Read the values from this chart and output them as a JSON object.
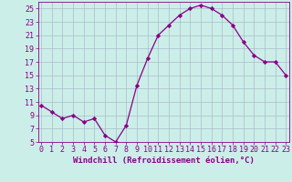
{
  "x": [
    0,
    1,
    2,
    3,
    4,
    5,
    6,
    7,
    8,
    9,
    10,
    11,
    12,
    13,
    14,
    15,
    16,
    17,
    18,
    19,
    20,
    21,
    22,
    23
  ],
  "y": [
    10.5,
    9.5,
    8.5,
    9.0,
    8.0,
    8.5,
    6.0,
    5.0,
    7.5,
    13.5,
    17.5,
    21.0,
    22.5,
    24.0,
    25.0,
    25.5,
    25.0,
    24.0,
    22.5,
    20.0,
    18.0,
    17.0,
    17.0,
    15.0
  ],
  "line_color": "#880088",
  "marker": "D",
  "marker_size": 2.2,
  "bg_color": "#cceee8",
  "grid_color": "#aabbcc",
  "xlabel": "Windchill (Refroidissement éolien,°C)",
  "xlabel_color": "#880088",
  "ylim": [
    5,
    26
  ],
  "yticks": [
    5,
    7,
    9,
    11,
    13,
    15,
    17,
    19,
    21,
    23,
    25
  ],
  "xticks": [
    0,
    1,
    2,
    3,
    4,
    5,
    6,
    7,
    8,
    9,
    10,
    11,
    12,
    13,
    14,
    15,
    16,
    17,
    18,
    19,
    20,
    21,
    22,
    23
  ],
  "tick_color": "#880088",
  "spine_color": "#880088",
  "tick_label_fontsize": 6.0,
  "xlabel_fontsize": 6.5,
  "line_width": 0.9
}
